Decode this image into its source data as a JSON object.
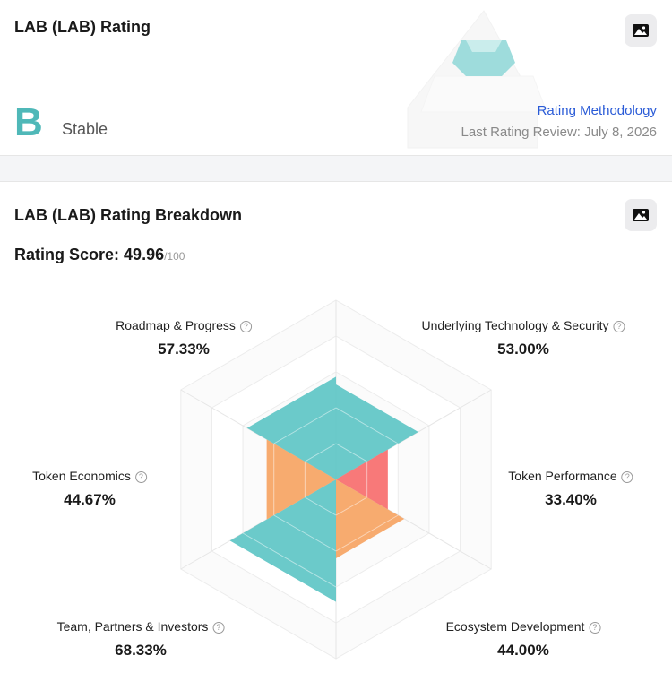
{
  "header": {
    "title": "LAB (LAB) Rating",
    "grade": "B",
    "status": "Stable",
    "methodology_link": "Rating Methodology",
    "last_review": "Last Rating Review: July 8, 2026"
  },
  "breakdown": {
    "title": "LAB (LAB) Rating Breakdown",
    "score_label": "Rating Score:",
    "score": 49.96,
    "score_max": {
      "value": 100,
      "label": "/100"
    },
    "radar": {
      "items": [
        {
          "label": "Underlying Technology & Security",
          "value": 53.0,
          "value_label": "53.00%",
          "color": "#5ec6c6"
        },
        {
          "label": "Token Performance",
          "value": 33.4,
          "value_label": "33.40%",
          "color": "#f76e6e"
        },
        {
          "label": "Ecosystem Development",
          "value": 44.0,
          "value_label": "44.00%",
          "color": "#f6a463"
        },
        {
          "label": "Team, Partners & Investors",
          "value": 68.33,
          "value_label": "68.33%",
          "color": "#5ec6c6"
        },
        {
          "label": "Token Economics",
          "value": 44.67,
          "value_label": "44.67%",
          "color": "#f6a463"
        },
        {
          "label": "Roadmap & Progress",
          "value": 57.33,
          "value_label": "57.33%",
          "color": "#5ec6c6"
        }
      ]
    }
  }
}
